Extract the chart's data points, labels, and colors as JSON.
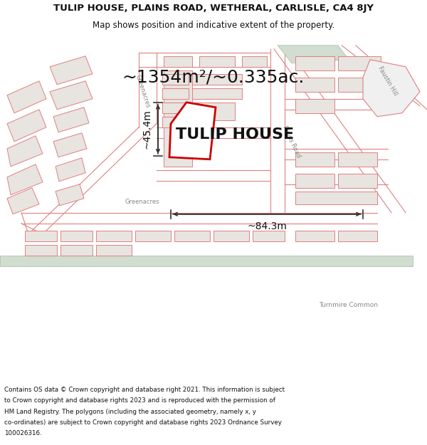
{
  "title_line1": "TULIP HOUSE, PLAINS ROAD, WETHERAL, CARLISLE, CA4 8JY",
  "title_line2": "Map shows position and indicative extent of the property.",
  "map_bg": "#f8f5f2",
  "building_fill": "#e8e4e0",
  "building_outline": "#e08080",
  "road_line_color": "#e08080",
  "plot_outline_color": "#e08080",
  "green_fill": "#d0ddd0",
  "highlight_outline": "#cc0000",
  "highlight_fill": "#ffffff",
  "dim_color": "#333333",
  "label_area": "~1354m²/~0.335ac.",
  "label_name": "TULIP HOUSE",
  "label_width": "~84.3m",
  "label_height": "~45.4m",
  "footer_line1": "Contains OS data © Crown copyright and database right 2021. This information is subject",
  "footer_line2": "to Crown copyright and database rights 2023 and is reproduced with the permission of",
  "footer_line3": "HM Land Registry. The polygons (including the associated geometry, namely x, y",
  "footer_line4": "co-ordinates) are subject to Crown copyright and database rights 2023 Ordnance Survey",
  "footer_line5": "100026316."
}
